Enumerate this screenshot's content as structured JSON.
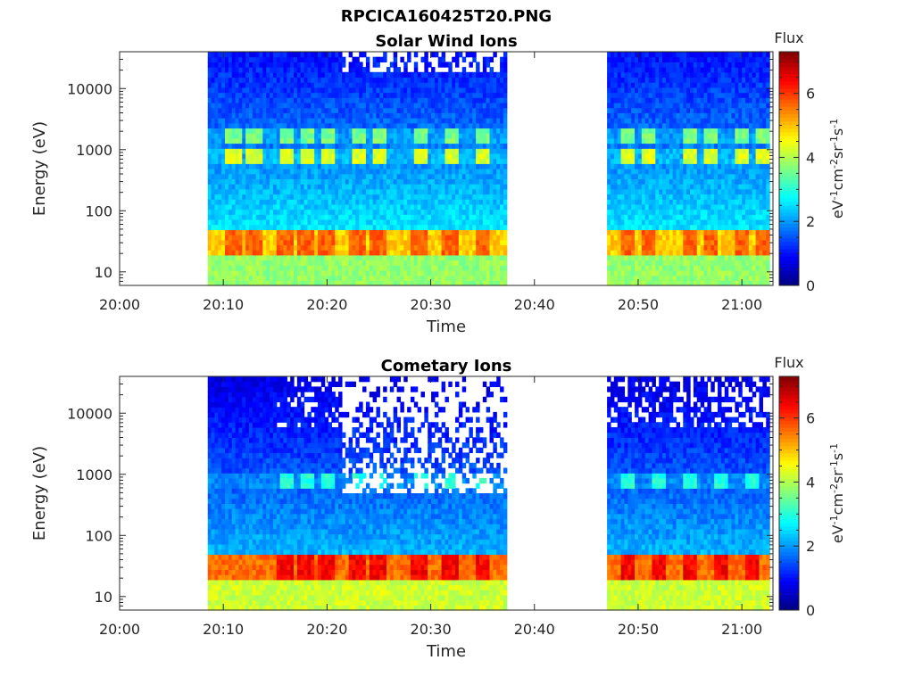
{
  "figure": {
    "title": "RPCICA160425T20.PNG"
  },
  "chart_data": [
    {
      "type": "heatmap",
      "title": "Solar Wind Ions",
      "xlabel": "Time",
      "ylabel": "Energy (eV)",
      "yscale": "log",
      "xlim": [
        "20:00",
        "21:03"
      ],
      "ylim": [
        6,
        40000
      ],
      "xticks": [
        "20:00",
        "20:10",
        "20:20",
        "20:30",
        "20:40",
        "20:50",
        "21:00"
      ],
      "yticks": [
        "10",
        "100",
        "1000",
        "10000"
      ],
      "colorbar": {
        "label": "Flux",
        "unit": "eV-1cm-2sr-1s-1",
        "range": [
          0,
          7.3
        ],
        "ticks": [
          "0",
          "2",
          "4",
          "6"
        ],
        "colormap": "jet"
      },
      "data_gaps": [
        [
          "20:00",
          "20:08:30"
        ],
        [
          "20:37:20",
          "20:47:00"
        ]
      ],
      "data_intervals": [
        [
          "20:08:30",
          "20:37:20"
        ],
        [
          "20:47:00",
          "21:02:40"
        ]
      ],
      "bands": [
        {
          "energy_range_eV": [
            20,
            45
          ],
          "flux_level": 5.3,
          "note": "main peak"
        },
        {
          "energy_range_eV": [
            600,
            1000
          ],
          "flux_level": 4.3,
          "note": "periodic"
        },
        {
          "energy_range_eV": [
            1300,
            2200
          ],
          "flux_level": 3.6,
          "note": "periodic"
        },
        {
          "energy_range_eV": [
            6,
            20
          ],
          "flux_level": 3.8,
          "note": "low-energy"
        }
      ],
      "background_flux": {
        "low_energy": 3.2,
        "high_energy": 1.0
      },
      "pulse_times": [
        "20:11",
        "20:13",
        "20:16",
        "20:18",
        "20:20",
        "20:23",
        "20:25",
        "20:29",
        "20:32",
        "20:35",
        "20:49",
        "20:51",
        "20:55",
        "20:57",
        "21:00",
        "21:02"
      ]
    },
    {
      "type": "heatmap",
      "title": "Cometary Ions",
      "xlabel": "Time",
      "ylabel": "Energy (eV)",
      "yscale": "log",
      "xlim": [
        "20:00",
        "21:03"
      ],
      "ylim": [
        6,
        40000
      ],
      "xticks": [
        "20:00",
        "20:10",
        "20:20",
        "20:30",
        "20:40",
        "20:50",
        "21:00"
      ],
      "yticks": [
        "10",
        "100",
        "1000",
        "10000"
      ],
      "colorbar": {
        "label": "Flux",
        "unit": "eV-1cm-2sr-1s-1",
        "range": [
          0,
          7.3
        ],
        "ticks": [
          "0",
          "2",
          "4",
          "6"
        ],
        "colormap": "jet"
      },
      "data_gaps": [
        [
          "20:00",
          "20:08:30"
        ],
        [
          "20:37:20",
          "20:47:00"
        ]
      ],
      "data_intervals": [
        [
          "20:08:30",
          "20:37:20"
        ],
        [
          "20:47:00",
          "21:02:40"
        ]
      ],
      "bands": [
        {
          "energy_range_eV": [
            20,
            45
          ],
          "flux_level": 6.0,
          "note": "main peak"
        },
        {
          "energy_range_eV": [
            600,
            1000
          ],
          "flux_level": 3.0,
          "note": "periodic"
        },
        {
          "energy_range_eV": [
            6,
            20
          ],
          "flux_level": 4.2,
          "note": "low-energy"
        }
      ],
      "background_flux": {
        "low_energy": 2.8,
        "high_energy": 0.7
      },
      "pulse_times": [
        "20:16",
        "20:18",
        "20:20",
        "20:23",
        "20:25",
        "20:29",
        "20:32",
        "20:35",
        "20:49",
        "20:52",
        "20:55",
        "20:58",
        "21:01"
      ]
    }
  ]
}
